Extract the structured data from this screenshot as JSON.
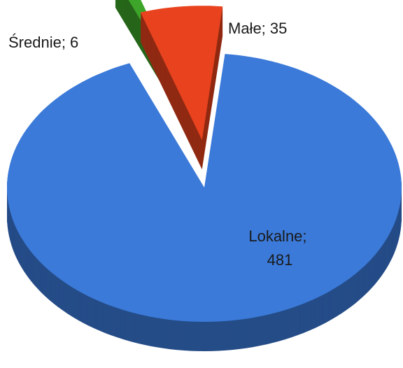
{
  "chart_data": {
    "type": "pie",
    "categories": [
      "Lokalne",
      "Małe",
      "Średnie"
    ],
    "values": [
      481,
      35,
      6
    ],
    "value_labels": [
      "Lokalne; 481",
      "Małe; 35",
      "Średnie; 6"
    ],
    "colors": [
      "#3b7ad9",
      "#e8431e",
      "#3da52a"
    ]
  }
}
